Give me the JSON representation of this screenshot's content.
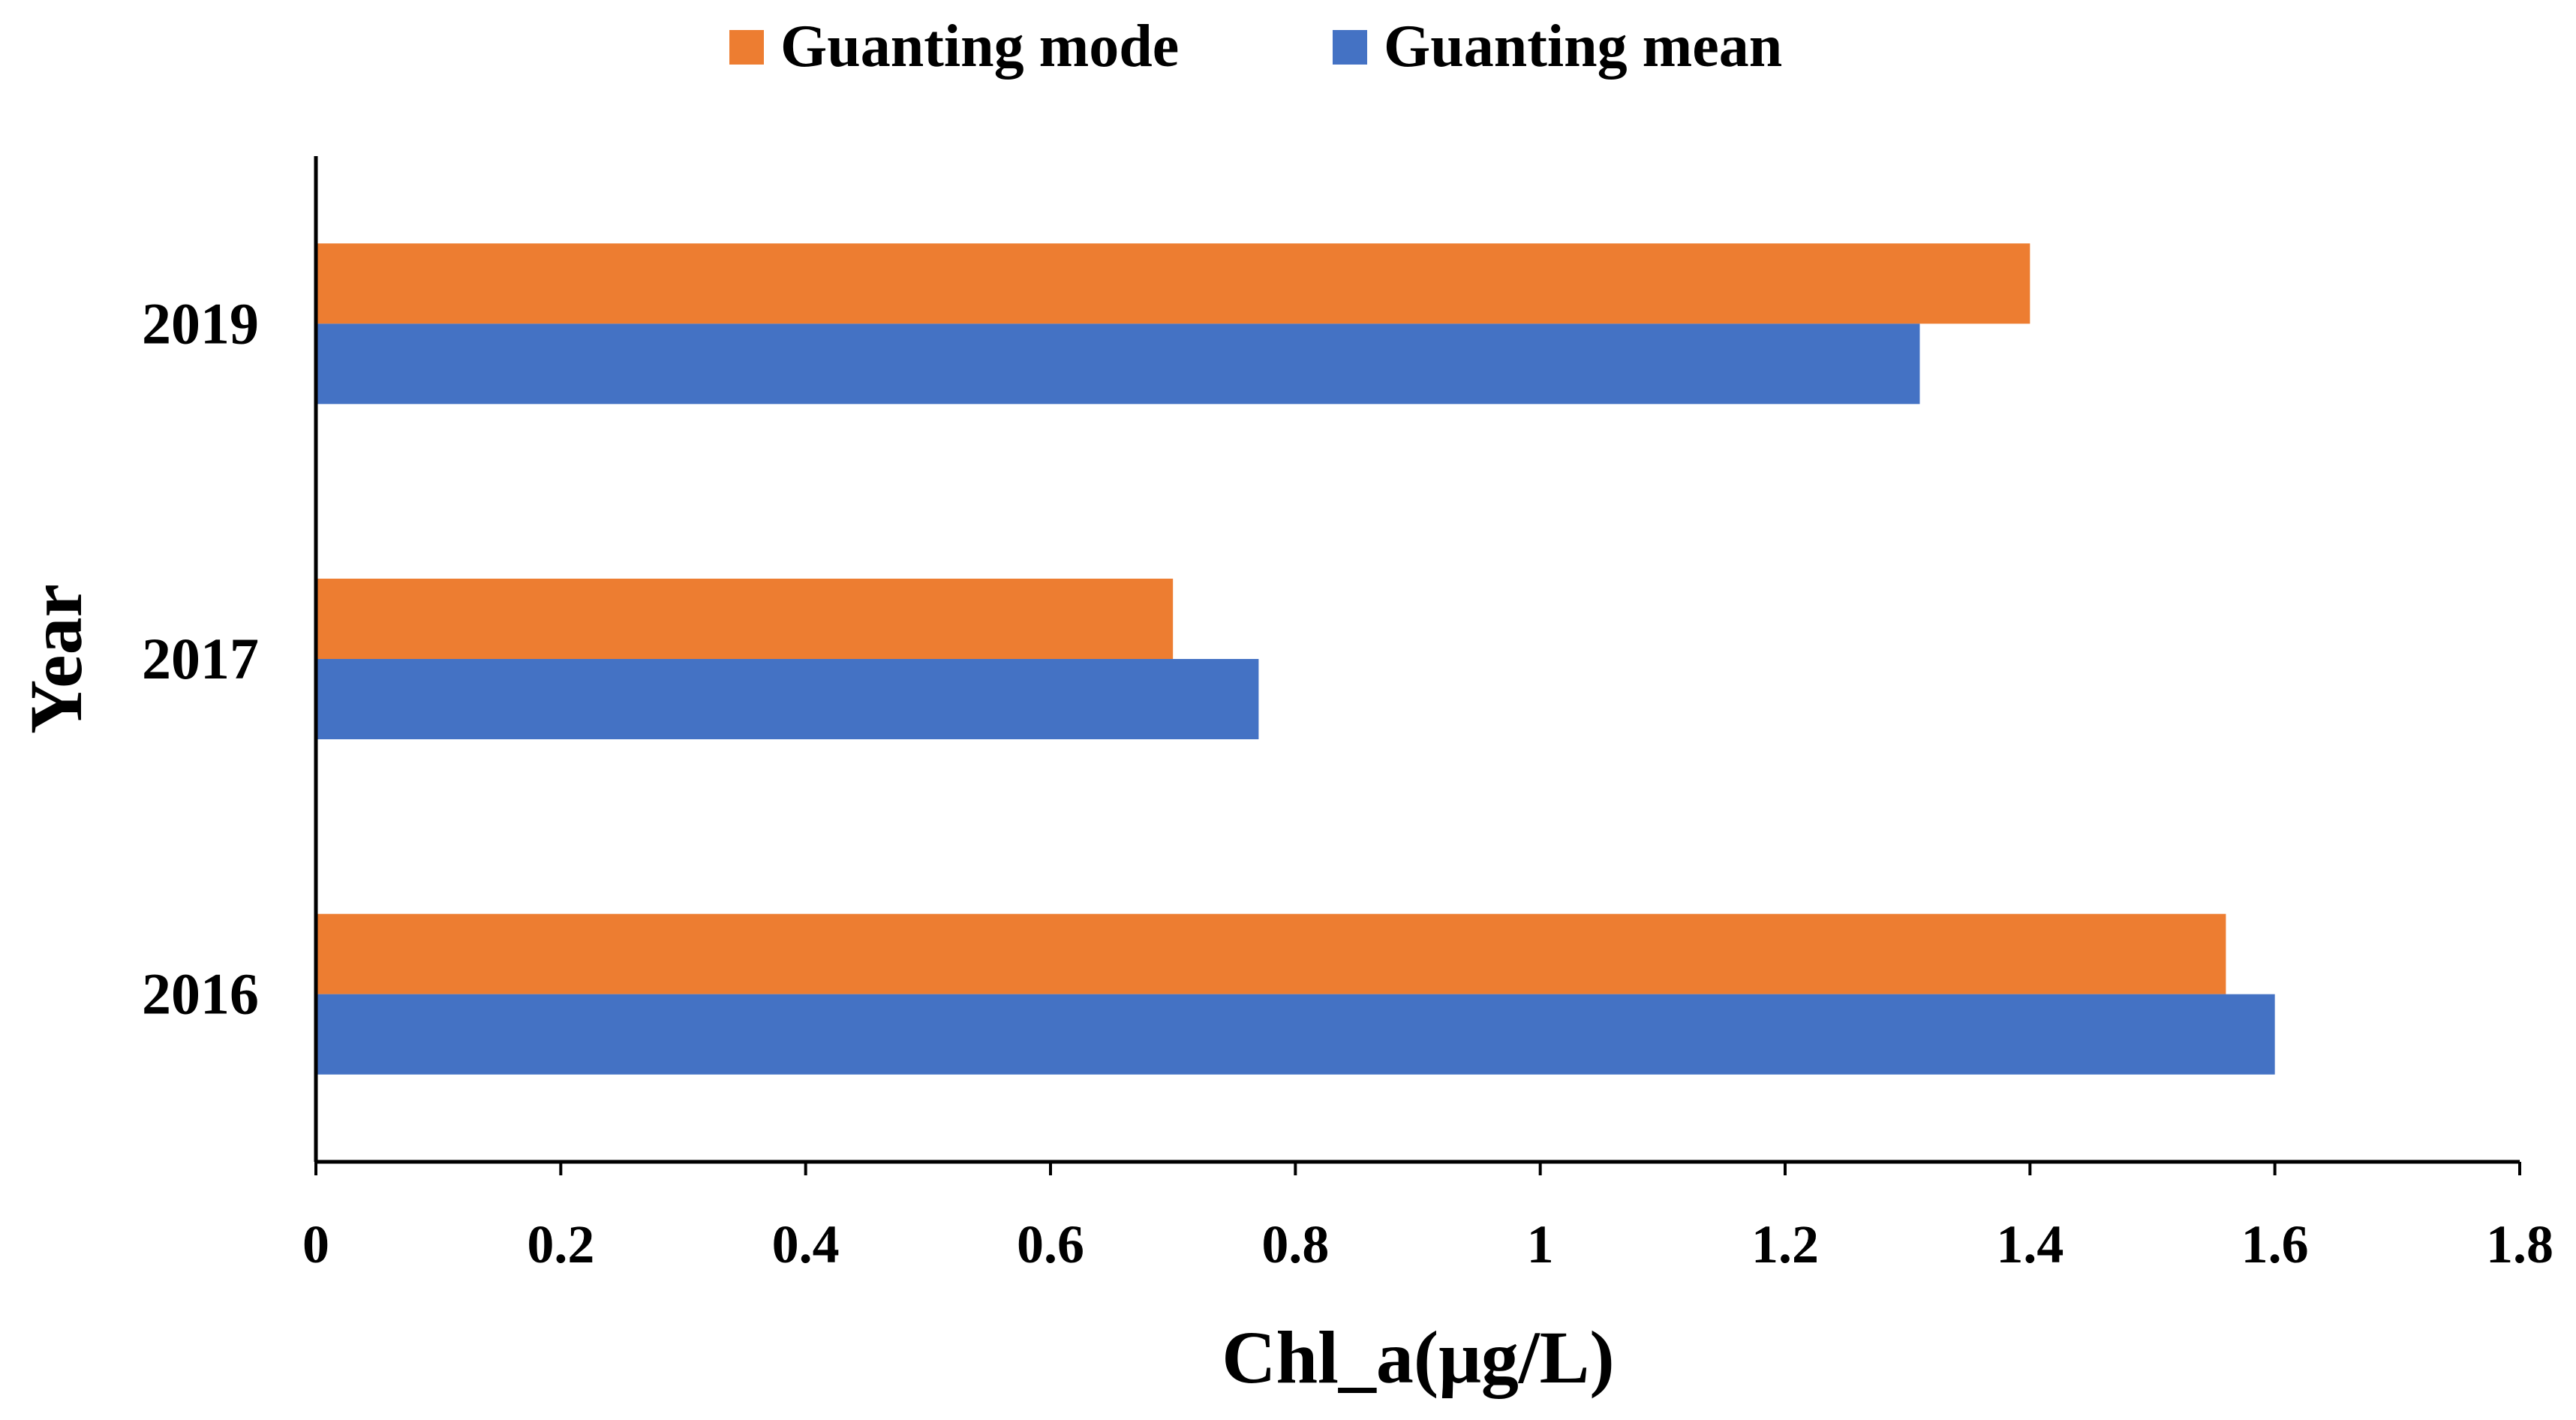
{
  "chart_data": {
    "type": "bar",
    "orientation": "horizontal",
    "title": "",
    "xlabel": "Chl_a(μg/L)",
    "ylabel": "Year",
    "categories": [
      "2016",
      "2017",
      "2019"
    ],
    "series": [
      {
        "name": "Guanting mode",
        "values": [
          1.56,
          0.7,
          1.4
        ],
        "color": "#ED7D31"
      },
      {
        "name": "Guanting mean",
        "values": [
          1.6,
          0.77,
          1.31
        ],
        "color": "#4472C4"
      }
    ],
    "xlim": [
      0,
      1.8
    ],
    "xticks": [
      "0",
      "0.2",
      "0.4",
      "0.6",
      "0.8",
      "1",
      "1.2",
      "1.4",
      "1.6",
      "1.8"
    ],
    "grid": false,
    "legend_position": "top"
  }
}
